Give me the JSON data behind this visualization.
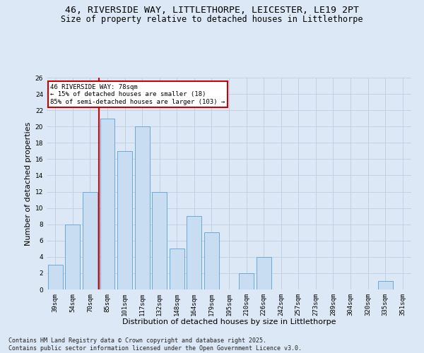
{
  "title1": "46, RIVERSIDE WAY, LITTLETHORPE, LEICESTER, LE19 2PT",
  "title2": "Size of property relative to detached houses in Littlethorpe",
  "xlabel": "Distribution of detached houses by size in Littlethorpe",
  "ylabel": "Number of detached properties",
  "categories": [
    "39sqm",
    "54sqm",
    "70sqm",
    "85sqm",
    "101sqm",
    "117sqm",
    "132sqm",
    "148sqm",
    "164sqm",
    "179sqm",
    "195sqm",
    "210sqm",
    "226sqm",
    "242sqm",
    "257sqm",
    "273sqm",
    "289sqm",
    "304sqm",
    "320sqm",
    "335sqm",
    "351sqm"
  ],
  "values": [
    3,
    8,
    12,
    21,
    17,
    20,
    12,
    5,
    9,
    7,
    0,
    2,
    4,
    0,
    0,
    0,
    0,
    0,
    0,
    1,
    0
  ],
  "bar_color": "#c9ddf2",
  "bar_edge_color": "#6aaad4",
  "grid_color": "#b8c8dc",
  "bg_color": "#dce8f5",
  "vline_x": 2.5,
  "vline_color": "#dd0000",
  "annotation_text": "46 RIVERSIDE WAY: 78sqm\n← 15% of detached houses are smaller (18)\n85% of semi-detached houses are larger (103) →",
  "annotation_box_color": "#cc0000",
  "annotation_fill": "#ffffff",
  "ylim": [
    0,
    26
  ],
  "yticks": [
    0,
    2,
    4,
    6,
    8,
    10,
    12,
    14,
    16,
    18,
    20,
    22,
    24,
    26
  ],
  "footer": "Contains HM Land Registry data © Crown copyright and database right 2025.\nContains public sector information licensed under the Open Government Licence v3.0.",
  "title_fontsize": 9.5,
  "subtitle_fontsize": 8.5,
  "tick_fontsize": 6.5,
  "label_fontsize": 8,
  "footer_fontsize": 6,
  "annot_fontsize": 6.5
}
